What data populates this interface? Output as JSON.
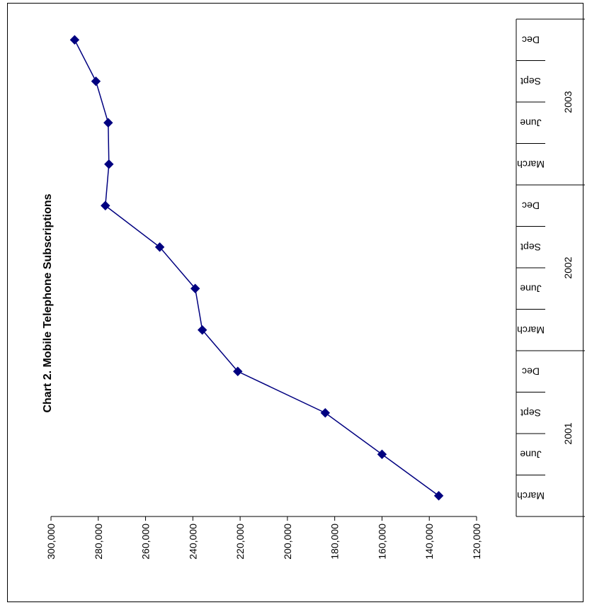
{
  "chart_data": {
    "type": "line",
    "title": "Chart 2.  Mobile Telephone Subscriptions",
    "orientation": "rotated-90-clockwise",
    "categories": [
      "March",
      "June",
      "Sept",
      "Dec",
      "March",
      "June",
      "Sept",
      "Dec",
      "March",
      "June",
      "Sept",
      "Dec"
    ],
    "years": [
      {
        "label": "2001",
        "span": 4
      },
      {
        "label": "2002",
        "span": 4
      },
      {
        "label": "2003",
        "span": 4
      }
    ],
    "values": [
      136000,
      160000,
      184000,
      221000,
      236000,
      239000,
      254000,
      277000,
      275500,
      275800,
      281000,
      290000
    ],
    "ylim": [
      120000,
      300000
    ],
    "yticks": [
      "120,000",
      "140,000",
      "160,000",
      "180,000",
      "200,000",
      "220,000",
      "240,000",
      "260,000",
      "280,000",
      "300,000"
    ],
    "ytick_values": [
      120000,
      140000,
      160000,
      180000,
      200000,
      220000,
      240000,
      260000,
      280000,
      300000
    ],
    "grid": false,
    "legend": "none",
    "series_color": "#000080"
  }
}
